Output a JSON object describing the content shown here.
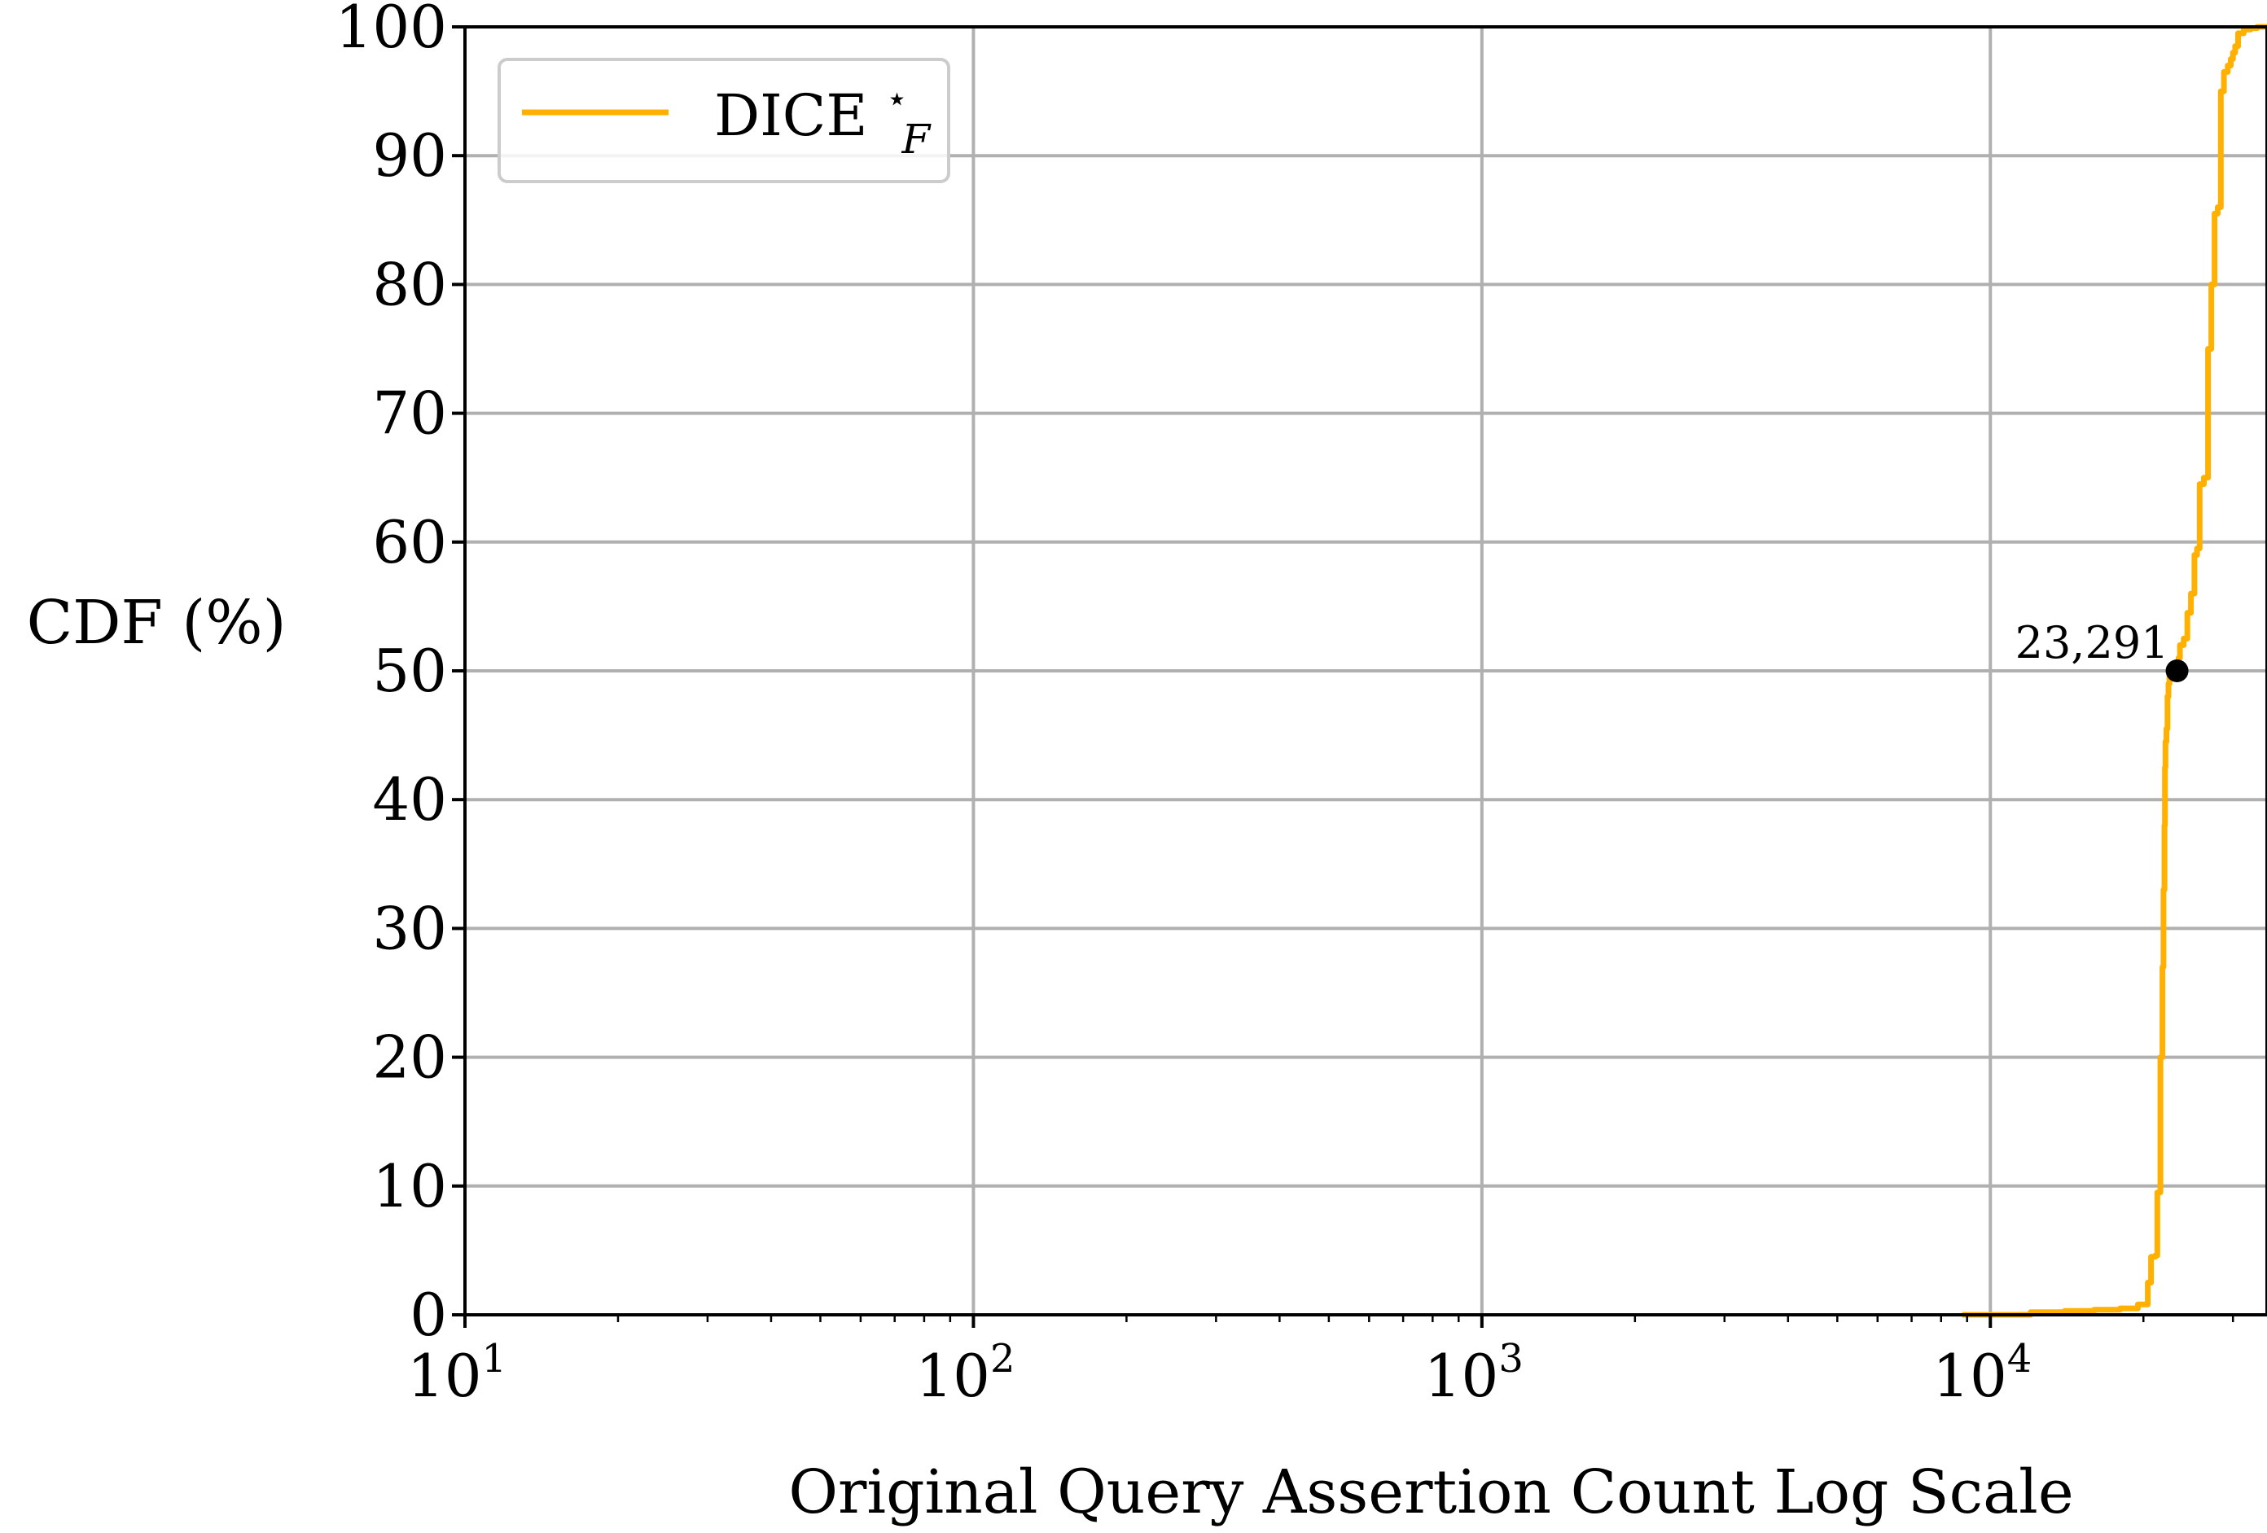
{
  "chart_data": {
    "type": "line",
    "xscale": "log",
    "xlim": [
      10,
      35000
    ],
    "ylim": [
      0,
      100
    ],
    "grid": true,
    "legend_position": "top-left",
    "xlabel": "Original Query Assertion Count Log Scale",
    "ylabel": "CDF (%)",
    "x_ticks": [
      {
        "value": 10,
        "base": "10",
        "exp": "1"
      },
      {
        "value": 100,
        "base": "10",
        "exp": "2"
      },
      {
        "value": 1000,
        "base": "10",
        "exp": "3"
      },
      {
        "value": 10000,
        "base": "10",
        "exp": "4"
      }
    ],
    "y_ticks": [
      {
        "value": 0,
        "label": "0"
      },
      {
        "value": 10,
        "label": "10"
      },
      {
        "value": 20,
        "label": "20"
      },
      {
        "value": 30,
        "label": "30"
      },
      {
        "value": 40,
        "label": "40"
      },
      {
        "value": 50,
        "label": "50"
      },
      {
        "value": 60,
        "label": "60"
      },
      {
        "value": 70,
        "label": "70"
      },
      {
        "value": 80,
        "label": "80"
      },
      {
        "value": 90,
        "label": "90"
      },
      {
        "value": 100,
        "label": "100"
      }
    ],
    "series": [
      {
        "name": "DICE",
        "name_superscript": "⋆",
        "name_subscript": "F",
        "color": "#ffb000",
        "x": [
          8800,
          12000,
          14000,
          16000,
          18000,
          19500,
          20400,
          20700,
          21100,
          21300,
          21600,
          21800,
          21900,
          22000,
          22050,
          22100,
          22200,
          22300,
          22400,
          22500,
          22700,
          22900,
          23291,
          23450,
          23600,
          24000,
          24400,
          24800,
          25200,
          25500,
          25800,
          26300,
          26800,
          27200,
          27600,
          28000,
          28400,
          28800,
          29300,
          29700,
          30000,
          30300,
          30700,
          31500,
          32500,
          33500,
          35000
        ],
        "y": [
          0,
          0.2,
          0.3,
          0.4,
          0.5,
          0.8,
          2.5,
          4.5,
          4.6,
          9.5,
          20,
          27,
          33,
          38,
          42.5,
          44.5,
          45.5,
          48,
          49,
          50,
          50,
          50,
          50,
          51,
          52,
          52.5,
          54.5,
          56,
          59,
          59.5,
          64.5,
          65,
          75,
          80,
          85.5,
          86,
          95,
          96.5,
          97,
          97.5,
          98,
          98.5,
          99.5,
          99.8,
          99.9,
          100,
          100
        ]
      }
    ],
    "annotations": [
      {
        "label": "23,291",
        "x": 23291,
        "y": 50
      }
    ]
  }
}
